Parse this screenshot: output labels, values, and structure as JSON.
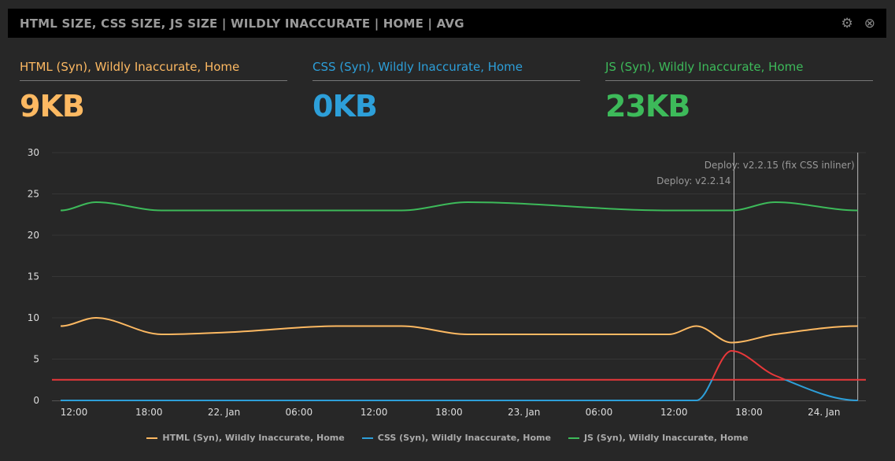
{
  "header": {
    "title": "HTML SIZE, CSS SIZE, JS SIZE | WILDLY INACCURATE | HOME | AVG",
    "settings_icon": "gear-icon",
    "close_icon": "close-icon"
  },
  "stats": [
    {
      "label": "HTML (Syn), Wildly Inaccurate, Home",
      "value": "9KB",
      "color": "#fdb962"
    },
    {
      "label": "CSS (Syn), Wildly Inaccurate, Home",
      "value": "0KB",
      "color": "#2d9fd9"
    },
    {
      "label": "JS (Syn), Wildly Inaccurate, Home",
      "value": "23KB",
      "color": "#3dba5a"
    }
  ],
  "chart_data": {
    "type": "line",
    "x_unit": "hours since 21 Jan 12:00",
    "xlim": [
      -1.07,
      62.7
    ],
    "ylim": [
      0,
      30
    ],
    "yticks": [
      0,
      5,
      10,
      15,
      20,
      25,
      30
    ],
    "xticks": [
      {
        "h": 0,
        "label": "12:00"
      },
      {
        "h": 6,
        "label": "18:00"
      },
      {
        "h": 12,
        "label": "22. Jan"
      },
      {
        "h": 18,
        "label": "06:00"
      },
      {
        "h": 24,
        "label": "12:00"
      },
      {
        "h": 30,
        "label": "18:00"
      },
      {
        "h": 36,
        "label": "23. Jan"
      },
      {
        "h": 42,
        "label": "06:00"
      },
      {
        "h": 48,
        "label": "12:00"
      },
      {
        "h": 54,
        "label": "18:00"
      },
      {
        "h": 60,
        "label": "24. Jan"
      }
    ],
    "threshold": {
      "value": 2.5,
      "color": "#e8383a"
    },
    "plot_lines": [
      {
        "h": 52.8,
        "label": "Deploy: v2.2.14"
      },
      {
        "h": 62.7,
        "label": "Deploy: v2.2.15 (fix CSS inliner)"
      }
    ],
    "series": [
      {
        "name": "HTML (Syn), Wildly Inaccurate, Home",
        "color": "#fdb962",
        "x": [
          -1.07,
          1.76,
          7,
          13,
          21,
          26.2,
          31.5,
          47.6,
          49.8,
          52.6,
          56.1,
          62.7
        ],
        "y": [
          9,
          10,
          8,
          8.3,
          9,
          9,
          8,
          8,
          9,
          7,
          8,
          9
        ]
      },
      {
        "name": "CSS (Syn), Wildly Inaccurate, Home",
        "color": "#2d9fd9",
        "x": [
          -1.07,
          20,
          40,
          49.8,
          52.6,
          56.1,
          62.7
        ],
        "y": [
          0,
          0,
          0,
          0,
          6,
          3,
          0
        ]
      },
      {
        "name": "JS (Syn), Wildly Inaccurate, Home",
        "color": "#3dba5a",
        "x": [
          -1.07,
          1.76,
          7,
          26.2,
          31.5,
          47.6,
          52.6,
          56.1,
          62.7
        ],
        "y": [
          23,
          24,
          23,
          23,
          24,
          23,
          23,
          24,
          23
        ]
      }
    ]
  }
}
